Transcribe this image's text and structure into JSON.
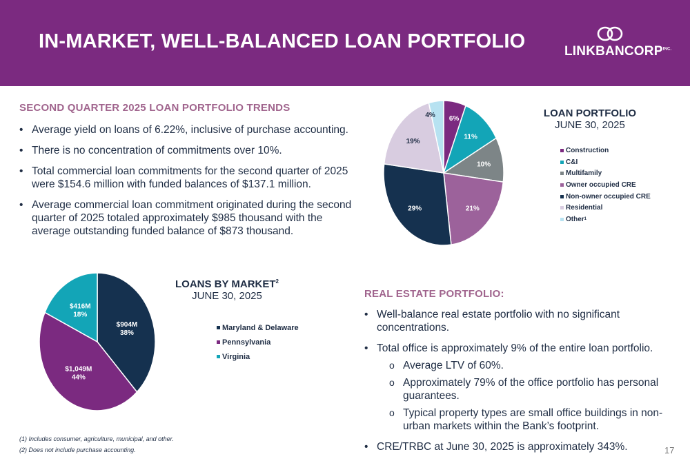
{
  "header": {
    "title": "IN-MARKET, WELL-BALANCED LOAN PORTFOLIO",
    "logo_text": "LINKBANCORP",
    "logo_suffix": "INC."
  },
  "trends": {
    "heading": "SECOND QUARTER 2025 LOAN PORTFOLIO TRENDS",
    "bullets": [
      "Average yield on loans of 6.22%, inclusive of purchase accounting.",
      "There is no concentration of commitments over 10%.",
      "Total commercial loan commitments for the second quarter of 2025 were $154.6 million with funded balances of $137.1 million.",
      "Average commercial loan commitment originated during the second quarter of 2025 totaled approximately $985 thousand with the average outstanding funded balance of $873 thousand."
    ]
  },
  "real_estate": {
    "heading": "REAL ESTATE PORTFOLIO:",
    "bullet1": "Well-balance real estate portfolio with no significant concentrations.",
    "bullet2": "Total office is approximately 9% of the entire loan portfolio.",
    "sub_bullets": [
      "Average LTV of 60%.",
      "Approximately 79% of the office portfolio has personal guarantees.",
      "Typical property types are small office buildings in non-urban markets within the Bank’s footprint."
    ],
    "bullet3": "CRE/TRBC at June 30, 2025 is approximately 343%."
  },
  "footnotes": [
    "(1) Includes consumer, agriculture, municipal, and other.",
    "(2) Does not include purchase accounting."
  ],
  "page_number": "17",
  "chart_data": [
    {
      "type": "pie",
      "title": "LOAN PORTFOLIO",
      "subtitle": "JUNE 30, 2025",
      "legend_position": "right",
      "categories": [
        "Construction",
        "C&I",
        "Multifamily",
        "Owner occupied CRE",
        "Non-owner occupied CRE",
        "Residential",
        "Other"
      ],
      "legend_superscripts": [
        "",
        "",
        "",
        "",
        "",
        "",
        "1"
      ],
      "values": [
        6,
        11,
        10,
        21,
        29,
        19,
        4
      ],
      "labels": [
        "6%",
        "11%",
        "10%",
        "21%",
        "29%",
        "19%",
        "4%"
      ],
      "colors": [
        "#7b2a80",
        "#13a5b7",
        "#7d8587",
        "#9c629b",
        "#15314f",
        "#d8cce0",
        "#b7e2f1"
      ]
    },
    {
      "type": "pie",
      "title": "LOANS BY MARKET",
      "title_superscript": "2",
      "subtitle": "JUNE 30, 2025",
      "legend_position": "right",
      "categories": [
        "Maryland & Delaware",
        "Pennsylvania",
        "Virginia"
      ],
      "values": [
        38,
        44,
        18
      ],
      "amounts": [
        "$904M",
        "$1,049M",
        "$416M"
      ],
      "labels": [
        "38%",
        "44%",
        "18%"
      ],
      "colors": [
        "#15314f",
        "#7b2a80",
        "#13a5b7"
      ]
    }
  ]
}
